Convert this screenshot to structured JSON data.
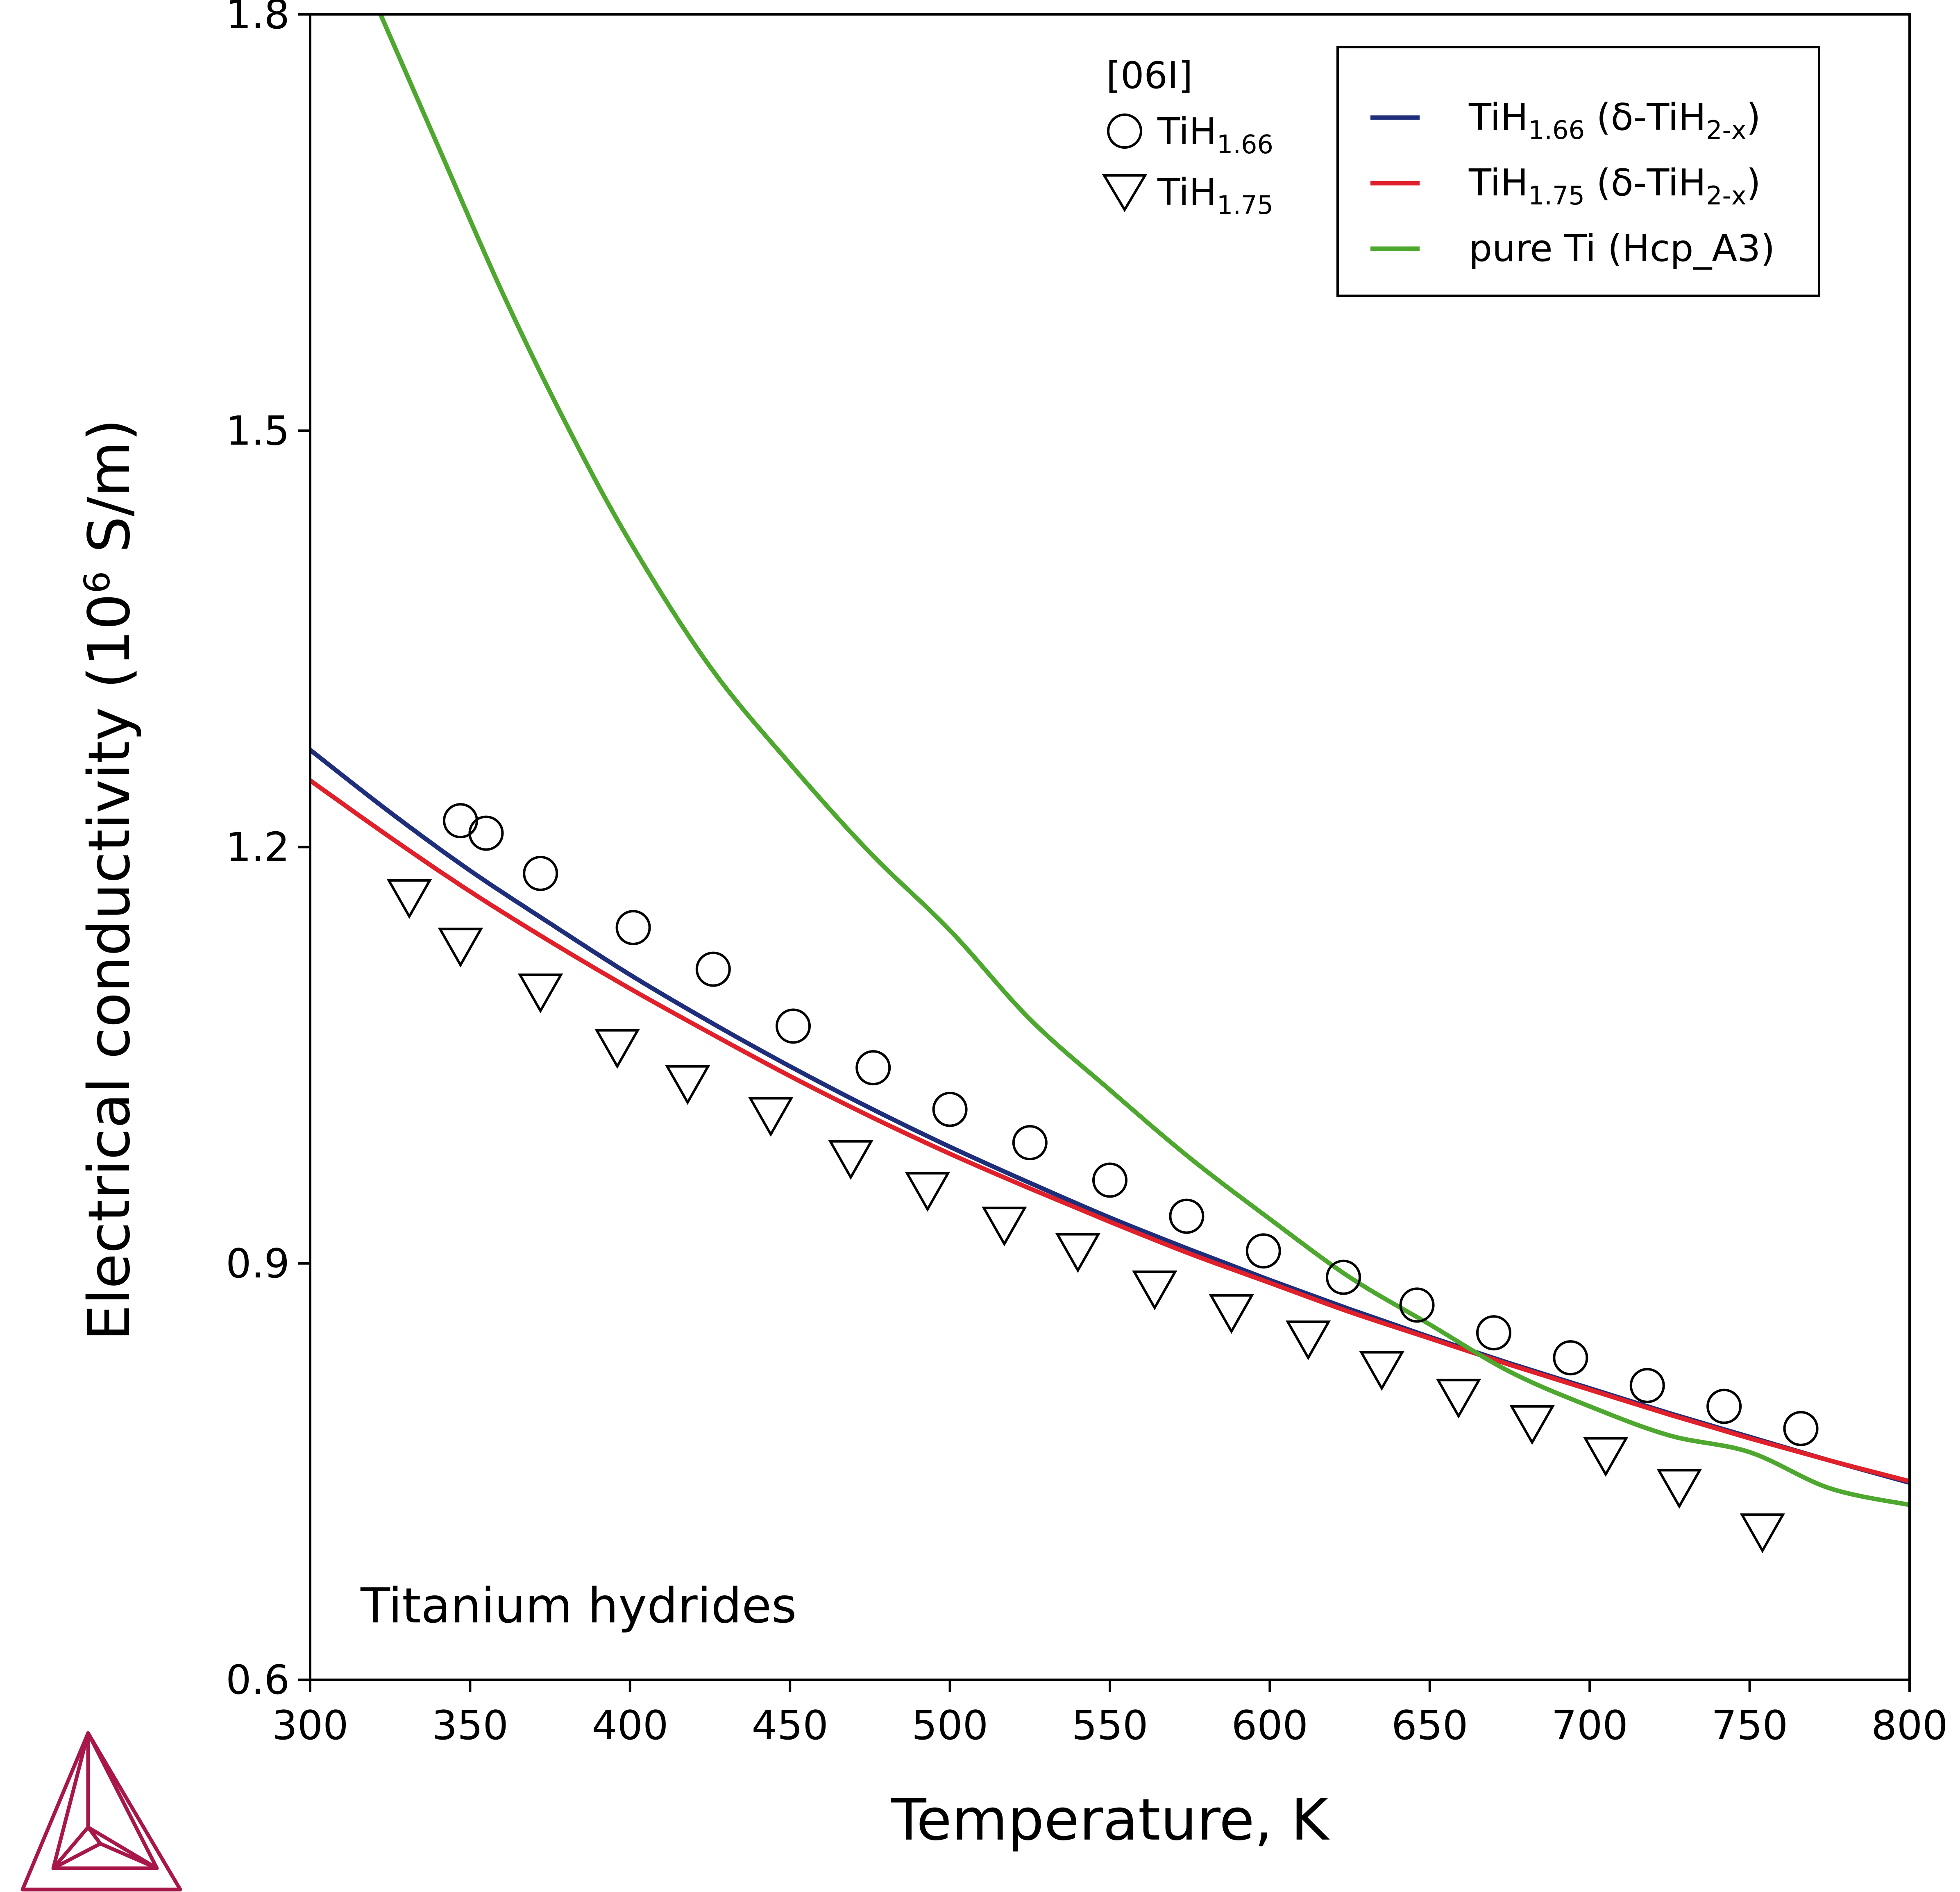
{
  "chart_data": {
    "type": "line",
    "xlabel": "Temperature, K",
    "ylabel": {
      "prefix": "Electrical conductivity (10",
      "sup": "6",
      "suffix": " S/m)"
    },
    "xlim": [
      300,
      800
    ],
    "ylim": [
      0.6,
      1.8
    ],
    "xticks": [
      300,
      350,
      400,
      450,
      500,
      550,
      600,
      650,
      700,
      750,
      800
    ],
    "yticks": [
      0.6,
      0.9,
      1.2,
      1.5,
      1.8
    ],
    "grid": false,
    "annotation": "Titanium hydrides",
    "legend": {
      "placement": "top-right",
      "entries": [
        {
          "parts": [
            {
              "t": "TiH"
            },
            {
              "t": "1.66",
              "sub": true
            },
            {
              "t": " (δ-TiH"
            },
            {
              "t": "2-x",
              "sub": true
            },
            {
              "t": ")"
            }
          ],
          "color": "#1f2e7a"
        },
        {
          "parts": [
            {
              "t": "TiH"
            },
            {
              "t": "1.75",
              "sub": true
            },
            {
              "t": " (δ-TiH"
            },
            {
              "t": "2-x",
              "sub": true
            },
            {
              "t": ")"
            }
          ],
          "color": "#e0202a"
        },
        {
          "parts": [
            {
              "t": "pure Ti (Hcp_A3)"
            }
          ],
          "color": "#4ea72e"
        }
      ]
    },
    "experimental_legend": {
      "reference": "[06I]",
      "entries": [
        {
          "marker": "circle",
          "parts": [
            {
              "t": "TiH"
            },
            {
              "t": "1.66",
              "sub": true
            }
          ]
        },
        {
          "marker": "triangle-down",
          "parts": [
            {
              "t": "TiH"
            },
            {
              "t": "1.75",
              "sub": true
            }
          ]
        }
      ]
    },
    "series": [
      {
        "name": "TiH1.66 (δ-TiH2-x)",
        "color": "#1f2e7a",
        "x": [
          300,
          325,
          350,
          375,
          400,
          425,
          450,
          475,
          500,
          525,
          550,
          575,
          600,
          625,
          650,
          675,
          700,
          725,
          750,
          775,
          800
        ],
        "y": [
          1.27,
          1.225,
          1.183,
          1.145,
          1.108,
          1.074,
          1.042,
          1.012,
          0.984,
          0.958,
          0.933,
          0.91,
          0.888,
          0.867,
          0.847,
          0.828,
          0.81,
          0.792,
          0.775,
          0.758,
          0.742
        ]
      },
      {
        "name": "TiH1.75 (δ-TiH2-x)",
        "color": "#e0202a",
        "x": [
          300,
          325,
          350,
          375,
          400,
          425,
          450,
          475,
          500,
          525,
          550,
          575,
          600,
          625,
          650,
          675,
          700,
          725,
          750,
          775,
          800
        ],
        "y": [
          1.248,
          1.207,
          1.168,
          1.132,
          1.098,
          1.066,
          1.035,
          1.006,
          0.979,
          0.954,
          0.93,
          0.907,
          0.886,
          0.865,
          0.846,
          0.827,
          0.809,
          0.791,
          0.774,
          0.758,
          0.743
        ]
      },
      {
        "name": "pure Ti (Hcp_A3)",
        "color": "#4ea72e",
        "x": [
          322,
          340,
          360,
          380,
          400,
          425,
          450,
          475,
          500,
          525,
          550,
          575,
          600,
          625,
          650,
          675,
          700,
          725,
          750,
          775,
          800
        ],
        "y": [
          1.8,
          1.705,
          1.6,
          1.505,
          1.42,
          1.33,
          1.26,
          1.196,
          1.14,
          1.076,
          1.025,
          0.976,
          0.932,
          0.89,
          0.856,
          0.822,
          0.797,
          0.776,
          0.764,
          0.738,
          0.726
        ]
      },
      {
        "name": "TiH1.66",
        "type": "scatter",
        "marker": "circle",
        "x": [
          347,
          355,
          372,
          401,
          426,
          451,
          476,
          500,
          525,
          550,
          574,
          598,
          623,
          646,
          670,
          694,
          718,
          742,
          766
        ],
        "y": [
          1.219,
          1.21,
          1.181,
          1.142,
          1.112,
          1.071,
          1.041,
          1.011,
          0.987,
          0.96,
          0.934,
          0.909,
          0.89,
          0.87,
          0.85,
          0.832,
          0.812,
          0.797,
          0.781
        ]
      },
      {
        "name": "TiH1.75",
        "type": "scatter",
        "marker": "triangle-down",
        "x": [
          331,
          347,
          372,
          396,
          418,
          444,
          469,
          493,
          517,
          540,
          564,
          588,
          612,
          635,
          659,
          682,
          705,
          728,
          754
        ],
        "y": [
          1.163,
          1.128,
          1.095,
          1.055,
          1.029,
          1.006,
          0.975,
          0.952,
          0.927,
          0.908,
          0.881,
          0.864,
          0.845,
          0.823,
          0.803,
          0.784,
          0.761,
          0.738,
          0.706
        ]
      }
    ]
  }
}
